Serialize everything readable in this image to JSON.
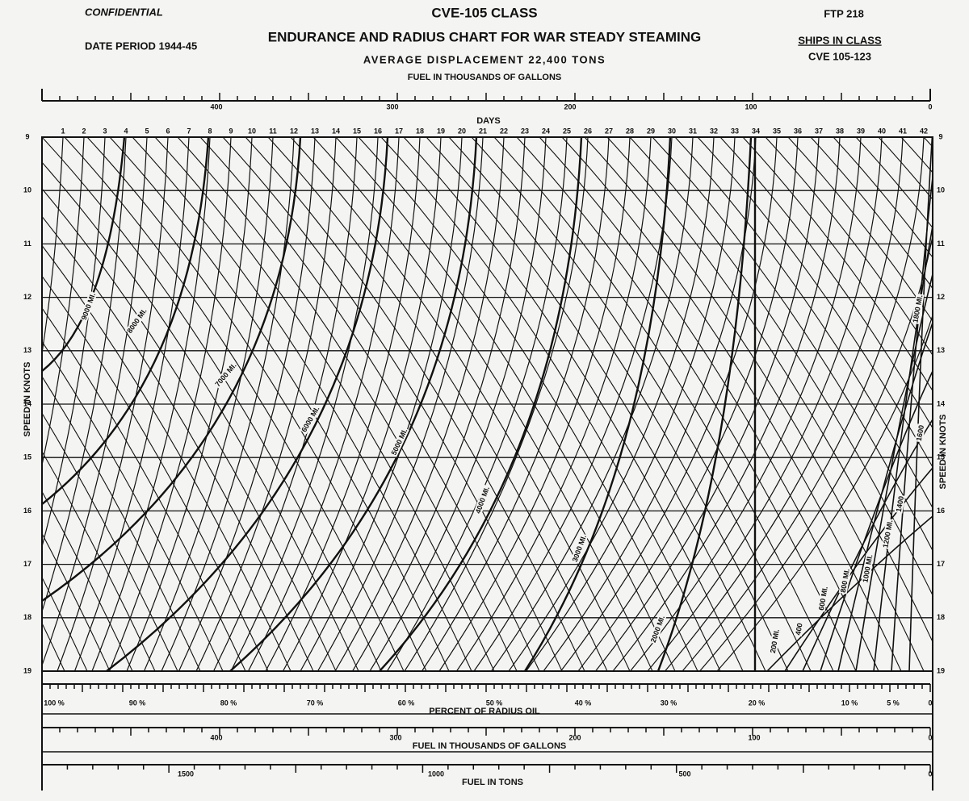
{
  "header": {
    "confidential": "CONFIDENTIAL",
    "class": "CVE-105 CLASS",
    "ftp": "FTP 218",
    "date_period": "DATE PERIOD 1944-45",
    "title": "ENDURANCE AND RADIUS CHART FOR WAR STEADY STEAMING",
    "ships_in_class_label": "SHIPS IN CLASS",
    "ships_in_class": "CVE 105-123",
    "subtitle": "AVERAGE DISPLACEMENT 22,400 TONS"
  },
  "top_scale": {
    "title": "FUEL IN THOUSANDS OF GALLONS",
    "labels": [
      "400",
      "300",
      "200",
      "100",
      "0"
    ]
  },
  "days": {
    "title": "DAYS",
    "labels": [
      "1",
      "2",
      "3",
      "4",
      "5",
      "6",
      "7",
      "8",
      "9",
      "10",
      "11",
      "12",
      "13",
      "14",
      "15",
      "16",
      "17",
      "18",
      "19",
      "20",
      "21",
      "22",
      "23",
      "24",
      "25",
      "26",
      "27",
      "28",
      "29",
      "30",
      "31",
      "32",
      "33",
      "34",
      "35",
      "36",
      "37",
      "38",
      "39",
      "40",
      "41",
      "42"
    ]
  },
  "speed": {
    "title": "SPEED IN KNOTS",
    "labels": [
      "9",
      "10",
      "11",
      "12",
      "13",
      "14",
      "15",
      "16",
      "17",
      "18",
      "19"
    ]
  },
  "radius_labels": [
    "9000 MI.",
    "8000 MI.",
    "7000 MI.",
    "6000 MI.",
    "5000 MI.",
    "4000 MI.",
    "3000 MI.",
    "2000 MI.",
    "200 MI.",
    "400",
    "600 MI.",
    "800 MI.",
    "1000 MI.",
    "1200 MI.",
    "1400",
    "1600",
    "1800 MI."
  ],
  "percent_scale": {
    "title": "PERCENT OF RADIUS OIL",
    "labels": [
      "100 %",
      "90 %",
      "80 %",
      "70 %",
      "60 %",
      "50 %",
      "40 %",
      "30 %",
      "20 %",
      "10 %",
      "5 %",
      "0"
    ]
  },
  "gallons_scale": {
    "title": "FUEL IN THOUSANDS OF GALLONS",
    "labels": [
      "400",
      "300",
      "200",
      "100",
      "0"
    ]
  },
  "tons_scale": {
    "title": "FUEL IN TONS",
    "labels": [
      "1500",
      "1000",
      "500",
      "0"
    ]
  }
}
